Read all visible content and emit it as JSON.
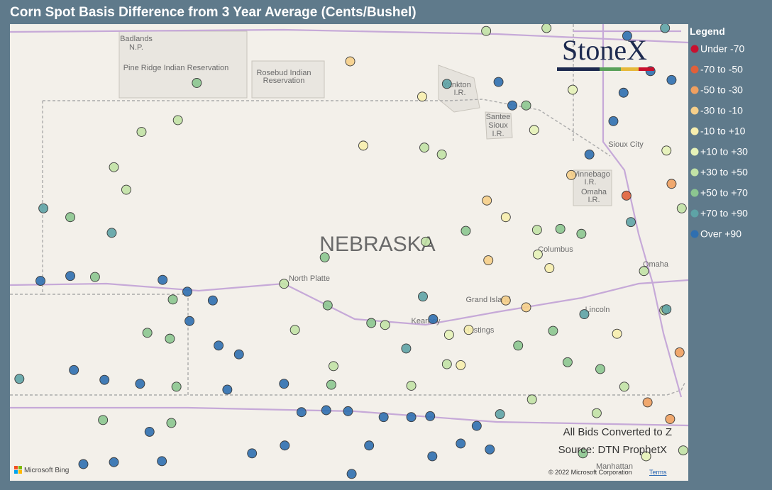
{
  "title": "Corn Spot Basis Difference from 3 Year Average (Cents/Bushel)",
  "map": {
    "lon_range": [
      -104.5,
      -95.17
    ],
    "lat_range": [
      39.12,
      43.78
    ],
    "labels": [
      "Badlands",
      "N.P.",
      "Pine Ridge Indian Reservation",
      "Rosebud Indian",
      "Reservation",
      "Yankton",
      "I.R.",
      "Santee",
      "Sioux",
      "I.R.",
      "Sioux City",
      "Winnebago",
      "I.R.",
      "Omaha",
      "I.R.",
      "NEBRASKA",
      "North Platte",
      "Columbus",
      "Grand Island",
      "Kearney",
      "Hastings",
      "Lincoln",
      "Omaha",
      "Manhattan"
    ]
  },
  "legend": {
    "title": "Legend",
    "bins": [
      {
        "label": "Under -70",
        "color": "#c8102e"
      },
      {
        "label": "-70 to -50",
        "color": "#e0603a"
      },
      {
        "label": "-50 to -30",
        "color": "#f0a060"
      },
      {
        "label": "-30 to -10",
        "color": "#f6cf8a"
      },
      {
        "label": "-10 to +10",
        "color": "#f7eeae"
      },
      {
        "label": "+10 to +30",
        "color": "#e6f2b8"
      },
      {
        "label": "+30 to +50",
        "color": "#c2e2a6"
      },
      {
        "label": "+50 to +70",
        "color": "#8cc690"
      },
      {
        "label": "+70 to +90",
        "color": "#5ea3a6"
      },
      {
        "label": "Over +90",
        "color": "#2f6fb0"
      }
    ]
  },
  "points": [
    [
      -104.04,
      41.9,
      8
    ],
    [
      -103.67,
      41.81,
      7
    ],
    [
      -103.1,
      41.65,
      8
    ],
    [
      -102.9,
      42.09,
      6
    ],
    [
      -102.69,
      42.68,
      6
    ],
    [
      -102.19,
      42.8,
      6
    ],
    [
      -103.07,
      42.32,
      6
    ],
    [
      -101.93,
      43.18,
      7
    ],
    [
      -104.08,
      41.16,
      9
    ],
    [
      -103.67,
      41.21,
      9
    ],
    [
      -103.33,
      41.2,
      7
    ],
    [
      -102.4,
      41.17,
      9
    ],
    [
      -102.06,
      41.05,
      9
    ],
    [
      -101.71,
      40.96,
      9
    ],
    [
      -102.03,
      40.75,
      9
    ],
    [
      -102.26,
      40.97,
      7
    ],
    [
      -102.61,
      40.63,
      7
    ],
    [
      -102.3,
      40.57,
      7
    ],
    [
      -101.63,
      40.5,
      9
    ],
    [
      -101.35,
      40.41,
      9
    ],
    [
      -103.62,
      40.25,
      9
    ],
    [
      -103.2,
      40.15,
      9
    ],
    [
      -102.71,
      40.11,
      9
    ],
    [
      -102.21,
      40.08,
      7
    ],
    [
      -101.51,
      40.05,
      9
    ],
    [
      -104.37,
      40.16,
      8
    ],
    [
      -103.22,
      39.74,
      7
    ],
    [
      -102.58,
      39.62,
      9
    ],
    [
      -102.28,
      39.71,
      7
    ],
    [
      -103.49,
      39.29,
      9
    ],
    [
      -103.07,
      39.31,
      9
    ],
    [
      -102.41,
      39.32,
      9
    ],
    [
      -101.17,
      39.4,
      9
    ],
    [
      -100.49,
      39.82,
      9
    ],
    [
      -100.15,
      39.84,
      9
    ],
    [
      -99.85,
      39.83,
      9
    ],
    [
      -99.36,
      39.77,
      9
    ],
    [
      -98.98,
      39.77,
      9
    ],
    [
      -98.72,
      39.78,
      9
    ],
    [
      -100.73,
      40.11,
      9
    ],
    [
      -100.08,
      40.1,
      7
    ],
    [
      -100.58,
      40.66,
      6
    ],
    [
      -100.13,
      40.91,
      7
    ],
    [
      -100.73,
      41.13,
      6
    ],
    [
      -100.17,
      41.4,
      7
    ],
    [
      -98.82,
      41.0,
      8
    ],
    [
      -98.68,
      40.77,
      9
    ],
    [
      -99.05,
      40.47,
      8
    ],
    [
      -99.34,
      40.71,
      6
    ],
    [
      -99.64,
      42.54,
      4
    ],
    [
      -99.82,
      43.4,
      3
    ],
    [
      -98.83,
      43.04,
      4
    ],
    [
      -98.8,
      42.52,
      6
    ],
    [
      -98.56,
      42.45,
      6
    ],
    [
      -98.49,
      43.17,
      8
    ],
    [
      -97.78,
      43.19,
      9
    ],
    [
      -97.59,
      42.95,
      9
    ],
    [
      -97.4,
      42.95,
      7
    ],
    [
      -97.29,
      42.7,
      5
    ],
    [
      -96.76,
      43.11,
      5
    ],
    [
      -96.53,
      42.45,
      9
    ],
    [
      -96.2,
      42.79,
      9
    ],
    [
      -96.06,
      43.08,
      9
    ],
    [
      -96.01,
      43.66,
      9
    ],
    [
      -95.69,
      43.3,
      9
    ],
    [
      -95.4,
      43.21,
      9
    ],
    [
      -95.47,
      42.49,
      5
    ],
    [
      -96.02,
      42.03,
      1
    ],
    [
      -95.4,
      42.15,
      2
    ],
    [
      -96.78,
      42.24,
      3
    ],
    [
      -95.96,
      41.76,
      8
    ],
    [
      -95.78,
      41.26,
      6
    ],
    [
      -95.5,
      40.86,
      6
    ],
    [
      -95.29,
      40.43,
      2
    ],
    [
      -95.73,
      39.92,
      2
    ],
    [
      -95.42,
      39.75,
      2
    ],
    [
      -95.24,
      39.43,
      6
    ],
    [
      -96.6,
      40.82,
      8
    ],
    [
      -97.24,
      41.43,
      5
    ],
    [
      -97.08,
      41.29,
      4
    ],
    [
      -97.68,
      40.96,
      3
    ],
    [
      -97.4,
      40.89,
      3
    ],
    [
      -97.92,
      41.37,
      3
    ],
    [
      -97.94,
      41.98,
      3
    ],
    [
      -97.68,
      41.81,
      4
    ],
    [
      -98.23,
      41.67,
      7
    ],
    [
      -98.78,
      41.56,
      6
    ],
    [
      -98.46,
      40.61,
      5
    ],
    [
      -98.19,
      40.66,
      4
    ],
    [
      -98.3,
      40.3,
      4
    ],
    [
      -97.51,
      40.5,
      7
    ],
    [
      -97.03,
      40.65,
      7
    ],
    [
      -96.83,
      40.33,
      7
    ],
    [
      -96.38,
      40.26,
      7
    ],
    [
      -96.15,
      40.62,
      4
    ],
    [
      -96.05,
      40.08,
      6
    ],
    [
      -96.43,
      39.81,
      6
    ],
    [
      -97.32,
      39.95,
      6
    ],
    [
      -97.76,
      39.8,
      8
    ],
    [
      -98.08,
      39.68,
      9
    ],
    [
      -97.9,
      39.44,
      9
    ],
    [
      -98.3,
      39.5,
      9
    ],
    [
      -98.69,
      39.37,
      9
    ],
    [
      -99.56,
      39.48,
      9
    ],
    [
      -99.8,
      39.19,
      9
    ],
    [
      -100.72,
      39.48,
      9
    ],
    [
      -96.62,
      39.4,
      7
    ],
    [
      -95.75,
      39.37,
      5
    ],
    [
      -96.64,
      41.64,
      7
    ],
    [
      -96.93,
      41.69,
      7
    ],
    [
      -97.25,
      41.68,
      6
    ],
    [
      -99.53,
      40.73,
      7
    ],
    [
      -100.05,
      40.29,
      6
    ],
    [
      -98.98,
      40.09,
      6
    ],
    [
      -98.49,
      40.31,
      6
    ],
    [
      -97.95,
      43.71,
      6
    ],
    [
      -97.12,
      43.74,
      6
    ],
    [
      -95.49,
      43.74,
      8
    ],
    [
      -95.26,
      41.9,
      6
    ],
    [
      -95.47,
      40.87,
      8
    ]
  ],
  "notes": [
    "All Bids Converted to Z",
    "Source: DTN ProphetX"
  ],
  "attribution": {
    "bing": "Microsoft Bing",
    "copyright": "© 2022 Microsoft Corporation",
    "terms": "Terms"
  },
  "logo": "StoneX"
}
